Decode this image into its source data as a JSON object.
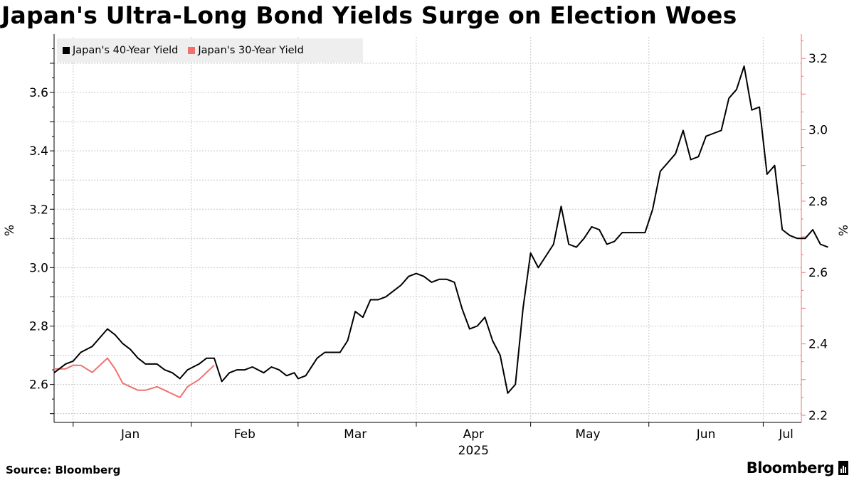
{
  "title": "Japan's Ultra-Long Bond Yields Surge on Election Woes",
  "source": "Source: Bloomberg",
  "brand": "Bloomberg",
  "colors": {
    "series_40y": "#000000",
    "series_30y": "#f07070",
    "grid": "#c8c8c8",
    "legend_bg": "#eeeeee"
  },
  "chart_data": {
    "type": "line",
    "title": "Japan's Ultra-Long Bond Yields Surge on Election Woes",
    "xlabel": "2025",
    "ylabel_left": "%",
    "ylabel_right": "%",
    "x_range": [
      "2024-12-27",
      "2025-07-11"
    ],
    "x_ticks": [
      {
        "date": "2025-01-16",
        "label": "Jan"
      },
      {
        "date": "2025-02-15",
        "label": "Feb"
      },
      {
        "date": "2025-03-16",
        "label": "Mar"
      },
      {
        "date": "2025-04-16",
        "label": "Apr"
      },
      {
        "date": "2025-05-16",
        "label": "May"
      },
      {
        "date": "2025-06-16",
        "label": "Jun"
      },
      {
        "date": "2025-07-07",
        "label": "Jul"
      }
    ],
    "x_gridlines": [
      "2025-01-01",
      "2025-02-01",
      "2025-03-01",
      "2025-04-01",
      "2025-05-01",
      "2025-06-01",
      "2025-07-01"
    ],
    "ylim_left": [
      2.47,
      3.79
    ],
    "ylim_right": [
      2.18,
      3.26
    ],
    "yticks_left": [
      2.6,
      2.8,
      3.0,
      3.2,
      3.4,
      3.6
    ],
    "yticks_right": [
      2.2,
      2.4,
      2.6,
      2.8,
      3.0,
      3.2
    ],
    "grid": true,
    "legend_position": "top-left",
    "series": [
      {
        "name": "Japan's 40-Year Yield",
        "axis": "left",
        "points": [
          [
            "2024-12-27",
            2.64
          ],
          [
            "2024-12-30",
            2.67
          ],
          [
            "2025-01-01",
            2.68
          ],
          [
            "2025-01-03",
            2.71
          ],
          [
            "2025-01-06",
            2.73
          ],
          [
            "2025-01-08",
            2.76
          ],
          [
            "2025-01-10",
            2.79
          ],
          [
            "2025-01-12",
            2.77
          ],
          [
            "2025-01-14",
            2.74
          ],
          [
            "2025-01-16",
            2.72
          ],
          [
            "2025-01-18",
            2.69
          ],
          [
            "2025-01-20",
            2.67
          ],
          [
            "2025-01-23",
            2.67
          ],
          [
            "2025-01-25",
            2.65
          ],
          [
            "2025-01-27",
            2.64
          ],
          [
            "2025-01-29",
            2.62
          ],
          [
            "2025-01-31",
            2.65
          ],
          [
            "2025-02-03",
            2.67
          ],
          [
            "2025-02-05",
            2.69
          ],
          [
            "2025-02-07",
            2.69
          ],
          [
            "2025-02-09",
            2.61
          ],
          [
            "2025-02-11",
            2.64
          ],
          [
            "2025-02-13",
            2.65
          ],
          [
            "2025-02-15",
            2.65
          ],
          [
            "2025-02-17",
            2.66
          ],
          [
            "2025-02-20",
            2.64
          ],
          [
            "2025-02-22",
            2.66
          ],
          [
            "2025-02-24",
            2.65
          ],
          [
            "2025-02-26",
            2.63
          ],
          [
            "2025-02-28",
            2.64
          ],
          [
            "2025-03-01",
            2.62
          ],
          [
            "2025-03-03",
            2.63
          ],
          [
            "2025-03-06",
            2.69
          ],
          [
            "2025-03-08",
            2.71
          ],
          [
            "2025-03-10",
            2.71
          ],
          [
            "2025-03-12",
            2.71
          ],
          [
            "2025-03-14",
            2.75
          ],
          [
            "2025-03-16",
            2.85
          ],
          [
            "2025-03-18",
            2.83
          ],
          [
            "2025-03-20",
            2.89
          ],
          [
            "2025-03-22",
            2.89
          ],
          [
            "2025-03-24",
            2.9
          ],
          [
            "2025-03-26",
            2.92
          ],
          [
            "2025-03-28",
            2.94
          ],
          [
            "2025-03-30",
            2.97
          ],
          [
            "2025-04-01",
            2.98
          ],
          [
            "2025-04-03",
            2.97
          ],
          [
            "2025-04-05",
            2.95
          ],
          [
            "2025-04-07",
            2.96
          ],
          [
            "2025-04-09",
            2.96
          ],
          [
            "2025-04-11",
            2.95
          ],
          [
            "2025-04-13",
            2.86
          ],
          [
            "2025-04-15",
            2.79
          ],
          [
            "2025-04-17",
            2.8
          ],
          [
            "2025-04-19",
            2.83
          ],
          [
            "2025-04-21",
            2.75
          ],
          [
            "2025-04-23",
            2.7
          ],
          [
            "2025-04-25",
            2.57
          ],
          [
            "2025-04-27",
            2.6
          ],
          [
            "2025-04-29",
            2.86
          ],
          [
            "2025-05-01",
            3.05
          ],
          [
            "2025-05-03",
            3.0
          ],
          [
            "2025-05-05",
            3.04
          ],
          [
            "2025-05-07",
            3.08
          ],
          [
            "2025-05-09",
            3.21
          ],
          [
            "2025-05-11",
            3.08
          ],
          [
            "2025-05-13",
            3.07
          ],
          [
            "2025-05-15",
            3.1
          ],
          [
            "2025-05-17",
            3.14
          ],
          [
            "2025-05-19",
            3.13
          ],
          [
            "2025-05-21",
            3.08
          ],
          [
            "2025-05-23",
            3.09
          ],
          [
            "2025-05-25",
            3.12
          ],
          [
            "2025-05-27",
            3.12
          ],
          [
            "2025-05-29",
            3.12
          ],
          [
            "2025-05-31",
            3.12
          ],
          [
            "2025-06-02",
            3.2
          ],
          [
            "2025-06-04",
            3.33
          ],
          [
            "2025-06-06",
            3.36
          ],
          [
            "2025-06-08",
            3.39
          ],
          [
            "2025-06-10",
            3.47
          ],
          [
            "2025-06-12",
            3.37
          ],
          [
            "2025-06-14",
            3.38
          ],
          [
            "2025-06-16",
            3.45
          ],
          [
            "2025-06-18",
            3.46
          ],
          [
            "2025-06-20",
            3.47
          ],
          [
            "2025-06-22",
            3.58
          ],
          [
            "2025-06-24",
            3.61
          ],
          [
            "2025-06-26",
            3.69
          ],
          [
            "2025-06-28",
            3.54
          ],
          [
            "2025-06-30",
            3.55
          ],
          [
            "2025-07-02",
            3.32
          ],
          [
            "2025-07-04",
            3.35
          ],
          [
            "2025-07-06",
            3.13
          ],
          [
            "2025-07-08",
            3.11
          ],
          [
            "2025-07-10",
            3.1
          ],
          [
            "2025-07-12",
            3.1
          ],
          [
            "2025-07-14",
            3.13
          ],
          [
            "2025-07-16",
            3.08
          ],
          [
            "2025-07-18",
            3.07
          ]
        ]
      },
      {
        "name": "Japan's 30-Year Yield",
        "axis": "right",
        "points": [
          [
            "2024-12-27",
            2.33
          ],
          [
            "2024-12-30",
            2.33
          ],
          [
            "2025-01-01",
            2.34
          ],
          [
            "2025-01-03",
            2.34
          ],
          [
            "2025-01-06",
            2.32
          ],
          [
            "2025-01-08",
            2.34
          ],
          [
            "2025-01-10",
            2.36
          ],
          [
            "2025-01-12",
            2.33
          ],
          [
            "2025-01-14",
            2.29
          ],
          [
            "2025-01-16",
            2.28
          ],
          [
            "2025-01-18",
            2.27
          ],
          [
            "2025-01-20",
            2.27
          ],
          [
            "2025-01-23",
            2.28
          ],
          [
            "2025-01-25",
            2.27
          ],
          [
            "2025-01-27",
            2.26
          ],
          [
            "2025-01-29",
            2.25
          ],
          [
            "2025-01-31",
            2.28
          ],
          [
            "2025-02-03",
            2.3
          ],
          [
            "2025-02-05",
            2.32
          ],
          [
            "2025-02-07",
            2.34
          ]
        ]
      }
    ]
  }
}
